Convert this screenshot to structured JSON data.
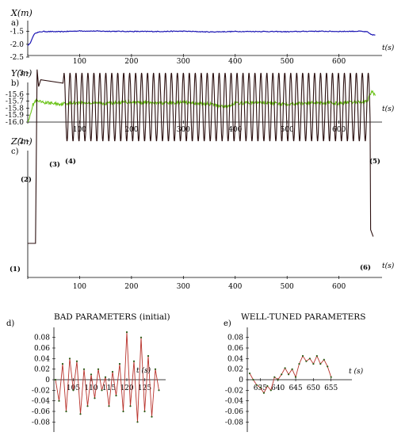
{
  "colors": {
    "x_series": "#1c16b4",
    "y_series": "#6dc41c",
    "z_series": "#2b0f0f",
    "detail_series": "#b8322b",
    "detail_points": "#2c5b16",
    "axis": "#000000"
  },
  "chart_data": [
    {
      "type": "line",
      "panel": "a)",
      "ylabel": "X(m)",
      "xlabel": "t(s)",
      "xlim": [
        0,
        680
      ],
      "ylim": [
        -2.5,
        -1.2
      ],
      "xticks": [
        0,
        100,
        200,
        300,
        400,
        500,
        600
      ],
      "yticks": [
        "-1.5",
        "-2.0",
        "-2.5"
      ],
      "series": [
        {
          "x": [
            0,
            5,
            10,
            15,
            30,
            60,
            100,
            150,
            200,
            250,
            300,
            350,
            400,
            450,
            500,
            550,
            600,
            640,
            655,
            660,
            665,
            670
          ],
          "values": [
            -2.05,
            -1.95,
            -1.7,
            -1.55,
            -1.5,
            -1.51,
            -1.48,
            -1.49,
            -1.5,
            -1.5,
            -1.49,
            -1.52,
            -1.5,
            -1.5,
            -1.51,
            -1.49,
            -1.5,
            -1.49,
            -1.52,
            -1.6,
            -1.63,
            -1.64
          ]
        }
      ]
    },
    {
      "type": "line",
      "panel": "b)",
      "ylabel": "Y(m)",
      "xlabel": "t(s)",
      "xlim": [
        0,
        680
      ],
      "ylim": [
        -16.0,
        -15.5
      ],
      "xticks": [
        0,
        100,
        200,
        300,
        400,
        500,
        600
      ],
      "yticks": [
        "-15.6",
        "-15.7",
        "-15.8",
        "-15.9",
        "-16.0"
      ],
      "series": [
        {
          "x": [
            0,
            3,
            6,
            10,
            15,
            30,
            60,
            100,
            150,
            200,
            250,
            300,
            350,
            380,
            400,
            450,
            500,
            550,
            600,
            640,
            655,
            660,
            663,
            670
          ],
          "values": [
            -16.0,
            -15.95,
            -15.85,
            -15.75,
            -15.7,
            -15.72,
            -15.74,
            -15.72,
            -15.73,
            -15.71,
            -15.73,
            -15.72,
            -15.74,
            -15.78,
            -15.73,
            -15.72,
            -15.74,
            -15.72,
            -15.73,
            -15.71,
            -15.7,
            -15.6,
            -15.55,
            -15.62
          ]
        }
      ]
    },
    {
      "type": "line",
      "panel": "c)",
      "ylabel": "Z(m)",
      "xlabel": "t(s)",
      "xlim": [
        0,
        680
      ],
      "ylim": [
        0,
        3.2
      ],
      "xticks": [
        0,
        100,
        200,
        300,
        400,
        500,
        600
      ],
      "yticks": [
        "3",
        "2"
      ],
      "annotations": [
        "(1)",
        "(2)",
        "(3)",
        "(4)",
        "(5)",
        "(6)"
      ],
      "segments": {
        "ground_level": 0.5,
        "takeoff_start": 15,
        "hover_level": 2.85,
        "hover_until": 70,
        "oscillation_center": 2.5,
        "oscillation_amplitude": 0.5,
        "oscillation_period": 11.5,
        "oscillation_end": 660,
        "landing_level": 0.6
      }
    },
    {
      "type": "line",
      "panel": "d)",
      "title": "BAD PARAMETERS (initial)",
      "xlabel": "t (s)",
      "xlim": [
        100,
        130
      ],
      "ylim": [
        -0.09,
        0.09
      ],
      "xticks": [
        "105",
        "110",
        "115",
        "120",
        "125"
      ],
      "yticks": [
        "0.08",
        "0.06",
        "0.04",
        "0.02",
        "0",
        "-0.02",
        "-0.04",
        "-0.06",
        "-0.08"
      ],
      "series": [
        {
          "x": [
            100,
            101,
            102,
            103,
            104,
            105,
            106,
            107,
            108,
            109,
            110,
            111,
            112,
            113,
            114,
            115,
            116,
            117,
            118,
            119,
            120,
            121,
            122,
            123,
            124,
            125,
            126,
            127,
            128,
            129
          ],
          "values": [
            0.0,
            -0.04,
            0.03,
            -0.06,
            0.04,
            -0.02,
            0.035,
            -0.065,
            0.02,
            -0.05,
            0.01,
            -0.035,
            0.02,
            -0.02,
            0.005,
            -0.05,
            0.015,
            -0.03,
            0.03,
            -0.06,
            0.09,
            -0.05,
            0.035,
            -0.08,
            0.08,
            -0.06,
            0.045,
            -0.07,
            0.02,
            -0.02
          ]
        }
      ]
    },
    {
      "type": "line",
      "panel": "e)",
      "title": "WELL-TUNED PARAMETERS",
      "xlabel": "t (s)",
      "xlim": [
        632,
        660
      ],
      "ylim": [
        -0.09,
        0.09
      ],
      "xticks": [
        "635",
        "640",
        "645",
        "650",
        "655"
      ],
      "yticks": [
        "0.08",
        "0.06",
        "0.04",
        "0.02",
        "0",
        "-0.02",
        "-0.04",
        "-0.06",
        "-0.08"
      ],
      "series": [
        {
          "x": [
            632,
            633,
            634,
            635,
            636,
            637,
            638,
            639,
            640,
            641,
            642,
            643,
            644,
            645,
            646,
            647,
            648,
            649,
            650,
            651,
            652,
            653,
            654,
            655
          ],
          "values": [
            0.012,
            0.0,
            -0.01,
            -0.015,
            -0.025,
            -0.012,
            -0.02,
            0.005,
            0.0,
            0.01,
            0.022,
            0.01,
            0.02,
            0.005,
            0.03,
            0.045,
            0.035,
            0.04,
            0.03,
            0.045,
            0.03,
            0.038,
            0.025,
            0.005
          ]
        }
      ]
    }
  ]
}
